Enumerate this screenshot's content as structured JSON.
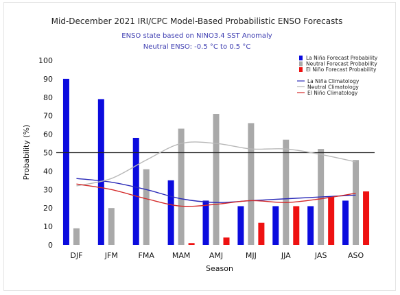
{
  "chart_data": {
    "type": "bar",
    "title": "Mid-December 2021 IRI/CPC Model-Based Probabilistic ENSO Forecasts",
    "subtitle_lines": [
      "ENSO state based on NINO3.4 SST Anomaly",
      "Neutral ENSO: -0.5 °C to 0.5 °C"
    ],
    "xlabel": "Season",
    "ylabel": "Probability (%)",
    "ylim": [
      0,
      100
    ],
    "yticks": [
      "0",
      "10",
      "20",
      "30",
      "40",
      "50",
      "60",
      "70",
      "80",
      "90",
      "100"
    ],
    "categories": [
      "DJF",
      "JFM",
      "FMA",
      "MAM",
      "AMJ",
      "MJJ",
      "JJA",
      "JAS",
      "ASO"
    ],
    "reference_line": 50,
    "series": [
      {
        "name": "La Niña Forecast Probability",
        "color": "#0b0bde",
        "values": [
          90,
          79,
          58,
          35,
          24,
          21,
          21,
          21,
          24
        ]
      },
      {
        "name": "Neutral Forecast Probability",
        "color": "#a9a9a9",
        "values": [
          9,
          20,
          41,
          63,
          71,
          66,
          57,
          52,
          46
        ]
      },
      {
        "name": "El Niño Forecast Probability",
        "color": "#ee1111",
        "values": [
          0,
          0,
          0,
          1,
          4,
          12,
          21,
          26,
          29
        ]
      }
    ],
    "climatology": [
      {
        "name": "La Niña Climatology",
        "color": "#2a2ab8",
        "values": [
          36,
          34,
          30,
          25,
          23,
          24,
          25,
          26,
          27
        ]
      },
      {
        "name": "Neutral Climatology",
        "color": "#b8b8b8",
        "values": [
          32,
          36,
          46,
          55,
          55,
          52,
          52,
          49,
          45
        ]
      },
      {
        "name": "El Niño Climatology",
        "color": "#d42a2a",
        "values": [
          33,
          30,
          25,
          21,
          22,
          24,
          23,
          25,
          28
        ]
      }
    ],
    "legend_position": "top-right",
    "grid": false
  }
}
